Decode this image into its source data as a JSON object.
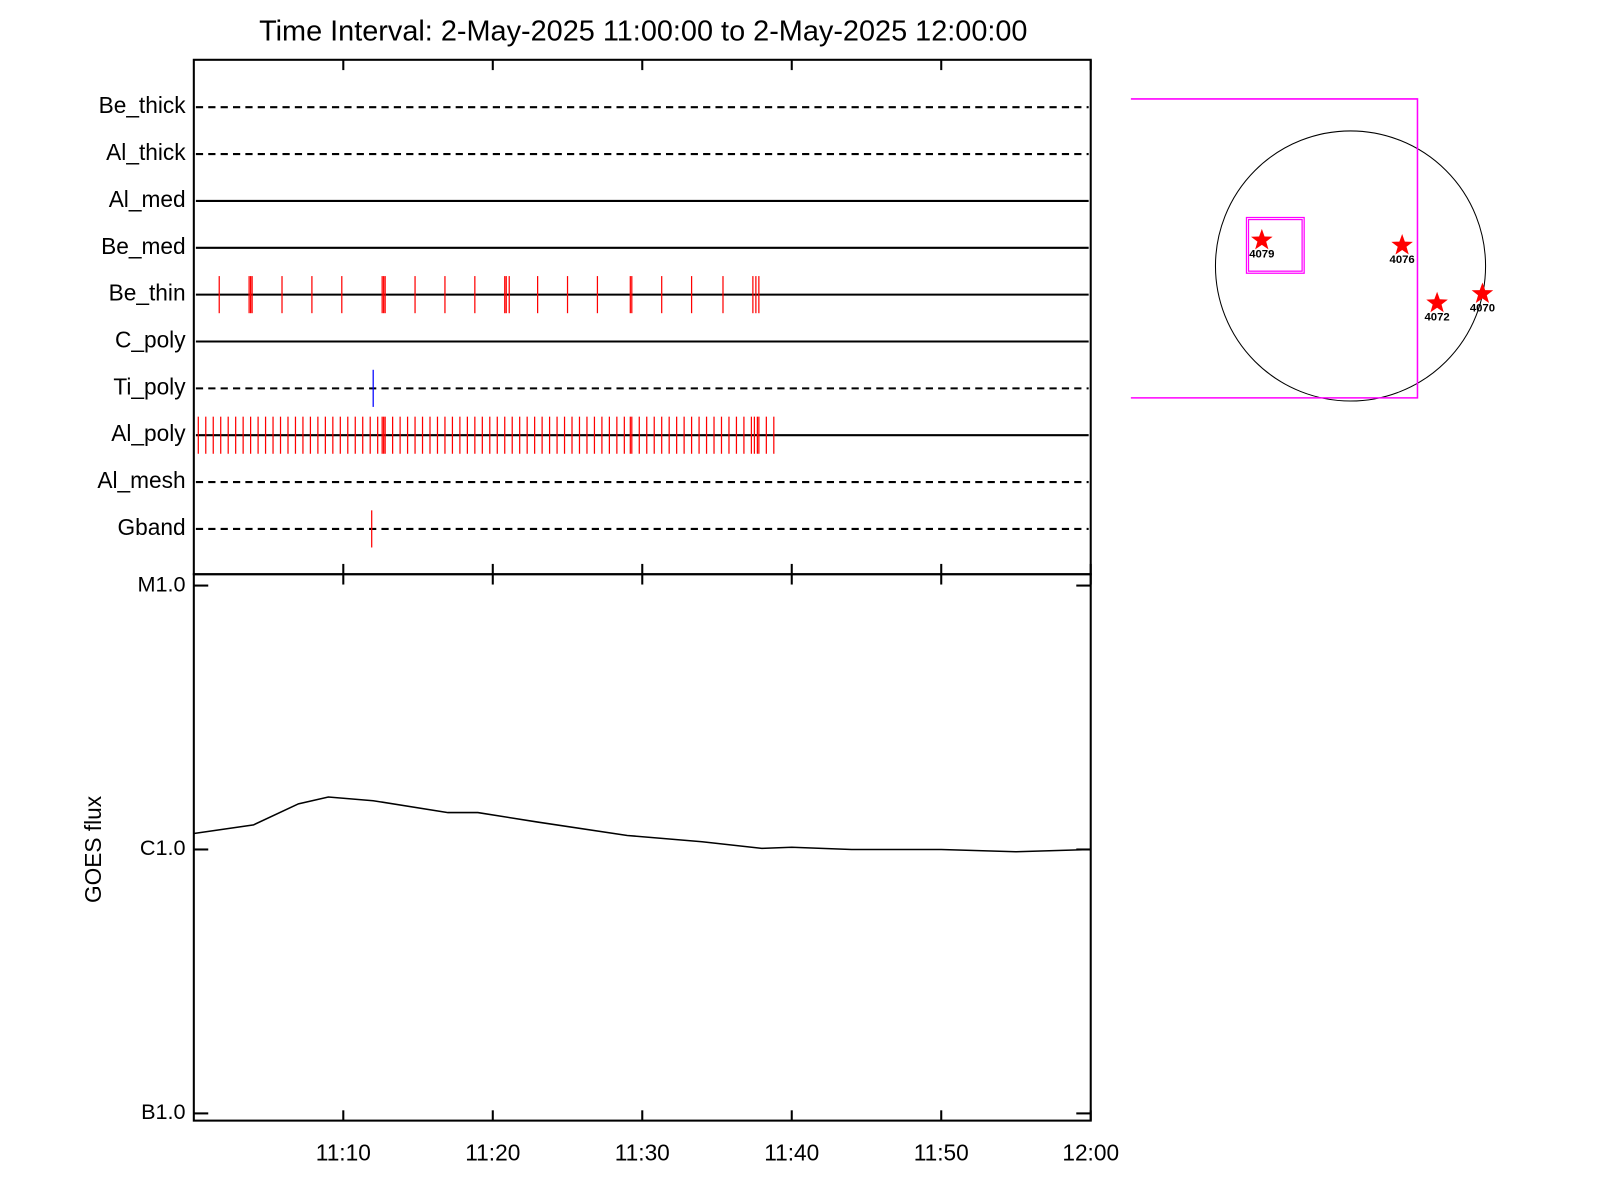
{
  "chart_data": [
    {
      "type": "timeline",
      "title": "Time Interval:  2-May-2025 11:00:00 to  2-May-2025 12:00:00",
      "xlim": [
        0,
        60
      ],
      "xticks": [
        10,
        20,
        30,
        40,
        50,
        60
      ],
      "rows": [
        {
          "name": "Be_thick",
          "line": "dashed",
          "events": []
        },
        {
          "name": "Al_thick",
          "line": "dashed",
          "events": []
        },
        {
          "name": "Al_med",
          "line": "solid",
          "events": []
        },
        {
          "name": "Be_med",
          "line": "solid",
          "events": []
        },
        {
          "name": "Be_thin",
          "line": "solid",
          "color": "#ff0000",
          "events": [
            1.7,
            3.7,
            3.8,
            3.9,
            5.9,
            7.9,
            9.9,
            12.6,
            12.7,
            12.8,
            14.8,
            16.8,
            18.8,
            20.8,
            20.9,
            21.1,
            23.0,
            25.0,
            27.0,
            29.2,
            29.3,
            31.3,
            33.3,
            35.4,
            37.4,
            37.6,
            37.8
          ]
        },
        {
          "name": "C_poly",
          "line": "solid",
          "events": []
        },
        {
          "name": "Ti_poly",
          "line": "dashed",
          "color": "#0000ff",
          "events": [
            12.0
          ]
        },
        {
          "name": "Al_poly",
          "line": "solid",
          "color": "#ff0000",
          "events": [
            0.3,
            0.8,
            1.3,
            1.8,
            2.3,
            2.8,
            3.3,
            3.8,
            4.3,
            4.8,
            5.3,
            5.8,
            6.3,
            6.8,
            7.3,
            7.8,
            8.3,
            8.8,
            9.3,
            9.8,
            10.3,
            10.8,
            11.3,
            11.8,
            12.3,
            12.6,
            12.7,
            12.8,
            13.3,
            13.8,
            14.3,
            14.8,
            15.3,
            15.8,
            16.3,
            16.8,
            17.3,
            17.8,
            18.3,
            18.8,
            19.3,
            19.8,
            20.3,
            20.8,
            21.3,
            21.8,
            22.3,
            22.8,
            23.3,
            23.8,
            24.3,
            24.8,
            25.3,
            25.8,
            26.3,
            26.8,
            27.3,
            27.8,
            28.3,
            28.8,
            29.2,
            29.3,
            29.8,
            30.3,
            30.8,
            31.3,
            31.8,
            32.3,
            32.8,
            33.3,
            33.8,
            34.3,
            34.8,
            35.3,
            35.8,
            36.3,
            36.8,
            37.3,
            37.5,
            37.7,
            37.8,
            38.3,
            38.8
          ]
        },
        {
          "name": "Al_mesh",
          "line": "dashed",
          "events": []
        },
        {
          "name": "Gband",
          "line": "dashed",
          "color": "#ff0000",
          "events": [
            11.9
          ]
        }
      ]
    },
    {
      "type": "line",
      "ylabel": "GOES flux",
      "log_scale": true,
      "color": "#000000",
      "xlim": [
        0,
        60
      ],
      "xticks": [
        {
          "value": 10,
          "label": "11:10"
        },
        {
          "value": 20,
          "label": "11:20"
        },
        {
          "value": 30,
          "label": "11:30"
        },
        {
          "value": 40,
          "label": "11:40"
        },
        {
          "value": 50,
          "label": "11:50"
        },
        {
          "value": 60,
          "label": "12:00"
        }
      ],
      "ylim": [
        1e-07,
        1e-05
      ],
      "yticks": [
        {
          "value": 1e-07,
          "label": "B1.0"
        },
        {
          "value": 1e-06,
          "label": "C1.0"
        },
        {
          "value": 1e-05,
          "label": "M1.0"
        }
      ],
      "x": [
        0,
        4,
        7,
        9,
        12,
        17,
        19,
        23,
        29,
        34,
        38,
        40,
        44,
        50,
        55,
        60
      ],
      "values": [
        1.15e-06,
        1.24e-06,
        1.49e-06,
        1.58e-06,
        1.53e-06,
        1.38e-06,
        1.38e-06,
        1.27e-06,
        1.13e-06,
        1.07e-06,
        1.01e-06,
        1.02e-06,
        1e-06,
        1e-06,
        9.8e-07,
        1e-06
      ]
    },
    {
      "type": "map",
      "disk_radius": 950,
      "color": "#ff0000",
      "fov": {
        "x": [
          -1545,
          471
        ],
        "y": [
          -928,
          1175
        ],
        "color": "#ff00ff"
      },
      "box": {
        "x": [
          -732,
          -326
        ],
        "y": [
          -51,
          341
        ],
        "color": "#ff00ff"
      },
      "points": [
        {
          "label": "4079",
          "x": -624,
          "y": 181
        },
        {
          "label": "4076",
          "x": 363,
          "y": 145
        },
        {
          "label": "4072",
          "x": 609,
          "y": -261
        },
        {
          "label": "4070",
          "x": 928,
          "y": -196
        }
      ]
    }
  ]
}
